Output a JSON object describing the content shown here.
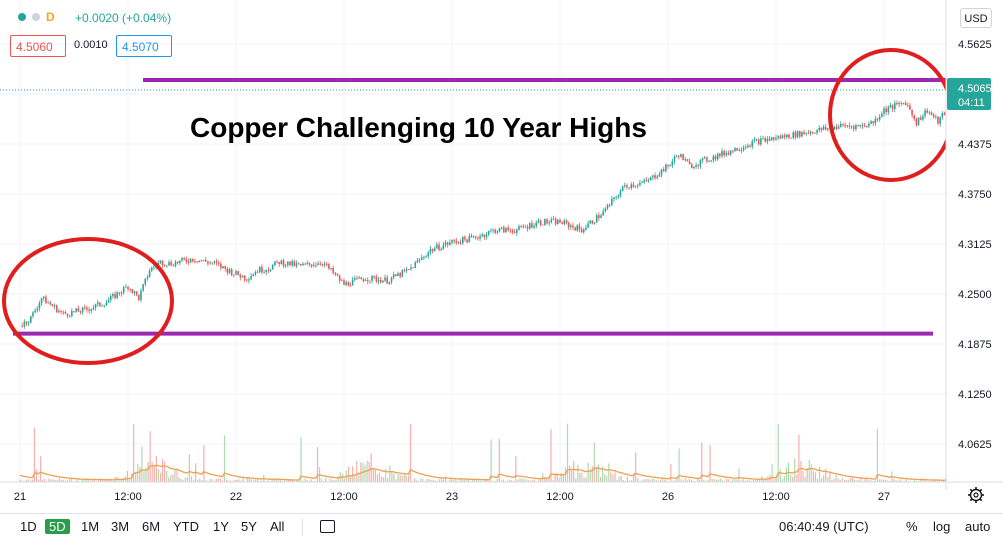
{
  "header": {
    "interval": "D",
    "change": "+0.0020 (+0.04%)",
    "bid": "4.5060",
    "spread": "0.0010",
    "ask": "4.5070",
    "currency_button": "USD"
  },
  "price_label": {
    "value": "4.5065",
    "countdown": "04:11"
  },
  "annotation": "Copper Challenging 10 Year Highs",
  "footer": {
    "timeframes": [
      "1D",
      "5D",
      "1M",
      "3M",
      "6M",
      "YTD",
      "1Y",
      "5Y",
      "All"
    ],
    "active_timeframe": "5D",
    "time": "06:40:49 (UTC)",
    "percent": "%",
    "log": "log",
    "auto": "auto"
  },
  "colors": {
    "up": "#26a69a",
    "down": "#ef5350",
    "level_line": "#9c27b0",
    "circle": "#e01e1e",
    "volume_ma": "#f0a050",
    "price_label_bg": "#26a69a",
    "active_timeframe": "#2a9d4b"
  },
  "chart_data": {
    "type": "line",
    "title": "",
    "xlabel": "",
    "ylabel": "",
    "x_ticks": [
      "21",
      "12:00",
      "22",
      "12:00",
      "23",
      "12:00",
      "26",
      "12:00",
      "27"
    ],
    "y_ticks": [
      "4.5625",
      "4.5000",
      "4.4375",
      "4.3750",
      "4.3125",
      "4.2500",
      "4.1875",
      "4.1250",
      "4.0625"
    ],
    "ylim": [
      4.03,
      4.59
    ],
    "x_range": [
      0,
      4.4
    ],
    "grid": true,
    "series": [
      {
        "x": [
          0.0,
          0.05,
          0.1,
          0.15,
          0.2,
          0.3,
          0.4,
          0.5,
          0.55,
          0.6,
          0.65,
          0.7,
          0.8,
          0.9,
          1.0,
          1.05,
          1.1,
          1.15,
          1.2,
          1.3,
          1.4,
          1.5,
          1.6,
          1.7,
          1.8,
          1.9,
          2.0,
          2.1,
          2.2,
          2.3,
          2.4,
          2.5,
          2.6,
          2.7,
          2.8,
          2.9,
          3.0,
          3.05,
          3.1,
          3.2,
          3.3,
          3.4,
          3.5,
          3.6,
          3.7,
          3.8,
          3.9,
          3.95,
          4.0,
          4.05,
          4.1,
          4.15,
          4.2,
          4.25,
          4.3,
          4.35,
          4.4
        ],
        "values": [
          4.21,
          4.22,
          4.245,
          4.235,
          4.225,
          4.23,
          4.24,
          4.26,
          4.245,
          4.28,
          4.29,
          4.288,
          4.294,
          4.288,
          4.275,
          4.27,
          4.28,
          4.282,
          4.29,
          4.285,
          4.29,
          4.262,
          4.27,
          4.267,
          4.28,
          4.305,
          4.315,
          4.32,
          4.33,
          4.33,
          4.34,
          4.34,
          4.33,
          4.352,
          4.385,
          4.39,
          4.41,
          4.425,
          4.41,
          4.42,
          4.43,
          4.44,
          4.445,
          4.45,
          4.455,
          4.46,
          4.46,
          4.465,
          4.48,
          4.485,
          4.49,
          4.465,
          4.48,
          4.465,
          4.485,
          4.51,
          4.5065
        ]
      }
    ],
    "horizontal_lines": [
      4.5175,
      4.2005
    ],
    "volume_ma_color": "#f0a050"
  }
}
